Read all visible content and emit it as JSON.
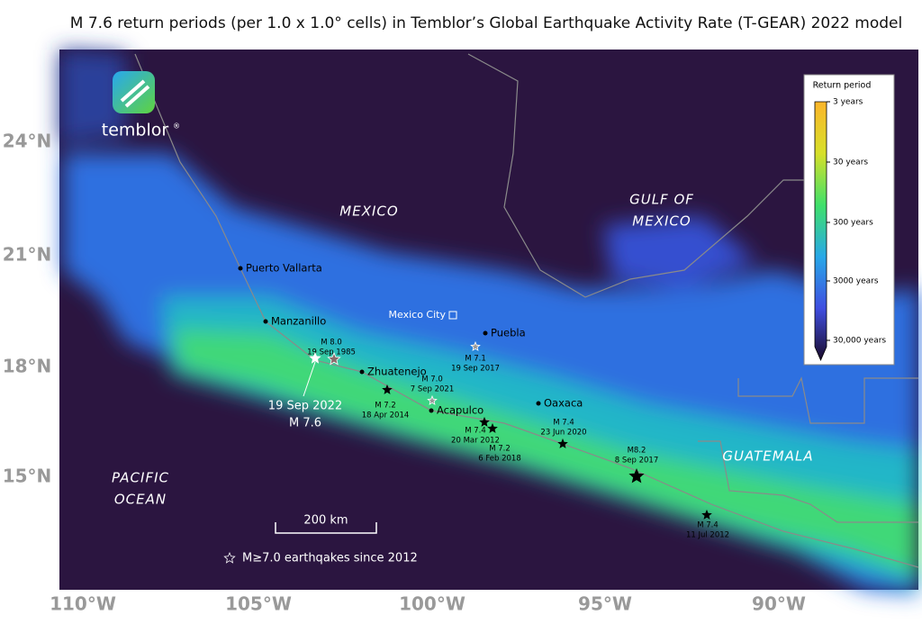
{
  "title": "M 7.6 return periods (per 1.0 x 1.0° cells) in Temblor’s Global Earthquake Activity Rate (T-GEAR) 2022 model",
  "axes": {
    "longitude_labels": [
      "110°W",
      "105°W",
      "100°W",
      "95°W",
      "90°W"
    ],
    "latitude_labels": [
      "24°N",
      "21°N",
      "18°N",
      "15°N"
    ]
  },
  "logo": {
    "name": "temblor",
    "mark": "®"
  },
  "regions": [
    {
      "lines": [
        "MEXICO"
      ]
    },
    {
      "lines": [
        "GULF  OF",
        "MEXICO"
      ]
    },
    {
      "lines": [
        "PACIFIC",
        "OCEAN"
      ]
    },
    {
      "lines": [
        "GUATEMALA"
      ]
    }
  ],
  "cities": [
    "Puerto Vallarta",
    "Manzanillo",
    "Zhuatenejo",
    "Acapulco",
    "Mexico City",
    "Puebla",
    "Oaxaca"
  ],
  "earthquakes": [
    {
      "magnitude": "M 8.0",
      "date": "19 Sep 1985"
    },
    {
      "magnitude": "M 7.1",
      "date": "19 Sep 2017"
    },
    {
      "magnitude": "M 7.0",
      "date": "7 Sep 2021"
    },
    {
      "magnitude": "M 7.2",
      "date": "18 Apr 2014"
    },
    {
      "magnitude": "M 7.4",
      "date": "20 Mar 2012"
    },
    {
      "magnitude": "M 7.2",
      "date": "6 Feb 2018"
    },
    {
      "magnitude": "M 7.4",
      "date": "23 Jun 2020"
    },
    {
      "magnitude": "M8.2",
      "date": "8 Sep 2017"
    },
    {
      "magnitude": "M 7.4",
      "date": "11 Jul 2012"
    }
  ],
  "featured_quake": {
    "date": "19 Sep 2022",
    "magnitude": "M 7.6"
  },
  "legend": {
    "title": "Return period",
    "labels": [
      "3 years",
      "30 years",
      "300 years",
      "3000 years",
      "30,000 years"
    ]
  },
  "scale_bar": "200 km",
  "note": "M≥7.0 earthqakes since 2012"
}
